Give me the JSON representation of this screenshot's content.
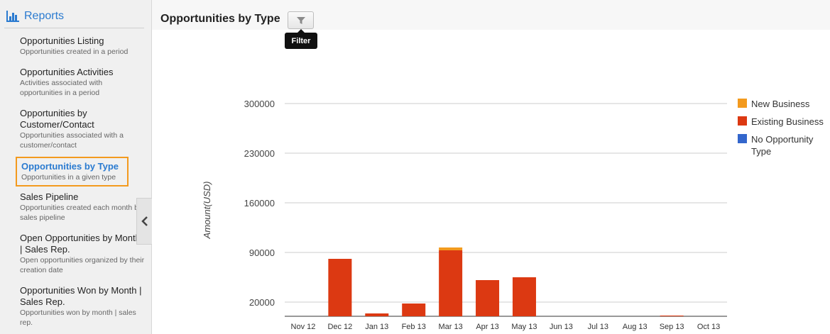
{
  "sidebar": {
    "title": "Reports",
    "items": [
      {
        "label": "Opportunities Listing",
        "desc": "Opportunities created in a period"
      },
      {
        "label": "Opportunities Activities",
        "desc": "Activities associated with opportunities in a period"
      },
      {
        "label": "Opportunities by Customer/Contact",
        "desc": "Opportunities associated with a customer/contact"
      },
      {
        "label": "Opportunities by Type",
        "desc": "Opportunities in a given type"
      },
      {
        "label": "Sales Pipeline",
        "desc": "Opportunities created each month by sales pipeline"
      },
      {
        "label": "Open Opportunities by Month | Sales Rep.",
        "desc": "Open opportunities organized by their creation date"
      },
      {
        "label": "Opportunities Won by Month | Sales Rep.",
        "desc": "Opportunities won by month | sales rep."
      }
    ]
  },
  "header": {
    "title": "Opportunities by Type",
    "filter_tooltip": "Filter"
  },
  "colors": {
    "accent": "#2b7bd0",
    "active_border": "#f39a1e",
    "new_business": "#f39a1e",
    "existing_business": "#dc3912",
    "no_opportunity_type": "#3366cc"
  },
  "chart_data": {
    "type": "bar",
    "stacked": true,
    "ylabel": "Amount(USD)",
    "xlabel": "",
    "y_ticks": [
      20000,
      90000,
      160000,
      230000,
      300000
    ],
    "ylim": [
      0,
      300000
    ],
    "grid": true,
    "legend_position": "right",
    "categories": [
      "Nov 12",
      "Dec 12",
      "Jan 13",
      "Feb 13",
      "Mar 13",
      "Apr 13",
      "May 13",
      "Jun 13",
      "Jul 13",
      "Aug 13",
      "Sep 13",
      "Oct 13"
    ],
    "series": [
      {
        "name": "New Business",
        "color": "#f39a1e",
        "values": [
          0,
          0,
          0,
          0,
          4000,
          0,
          0,
          0,
          0,
          0,
          0,
          0
        ]
      },
      {
        "name": "Existing Business",
        "color": "#dc3912",
        "values": [
          0,
          81000,
          4000,
          18000,
          93000,
          51000,
          55000,
          0,
          0,
          0,
          1000,
          0
        ]
      },
      {
        "name": "No Opportunity Type",
        "color": "#3366cc",
        "values": [
          0,
          0,
          0,
          0,
          0,
          0,
          0,
          0,
          0,
          0,
          0,
          0
        ]
      }
    ]
  }
}
